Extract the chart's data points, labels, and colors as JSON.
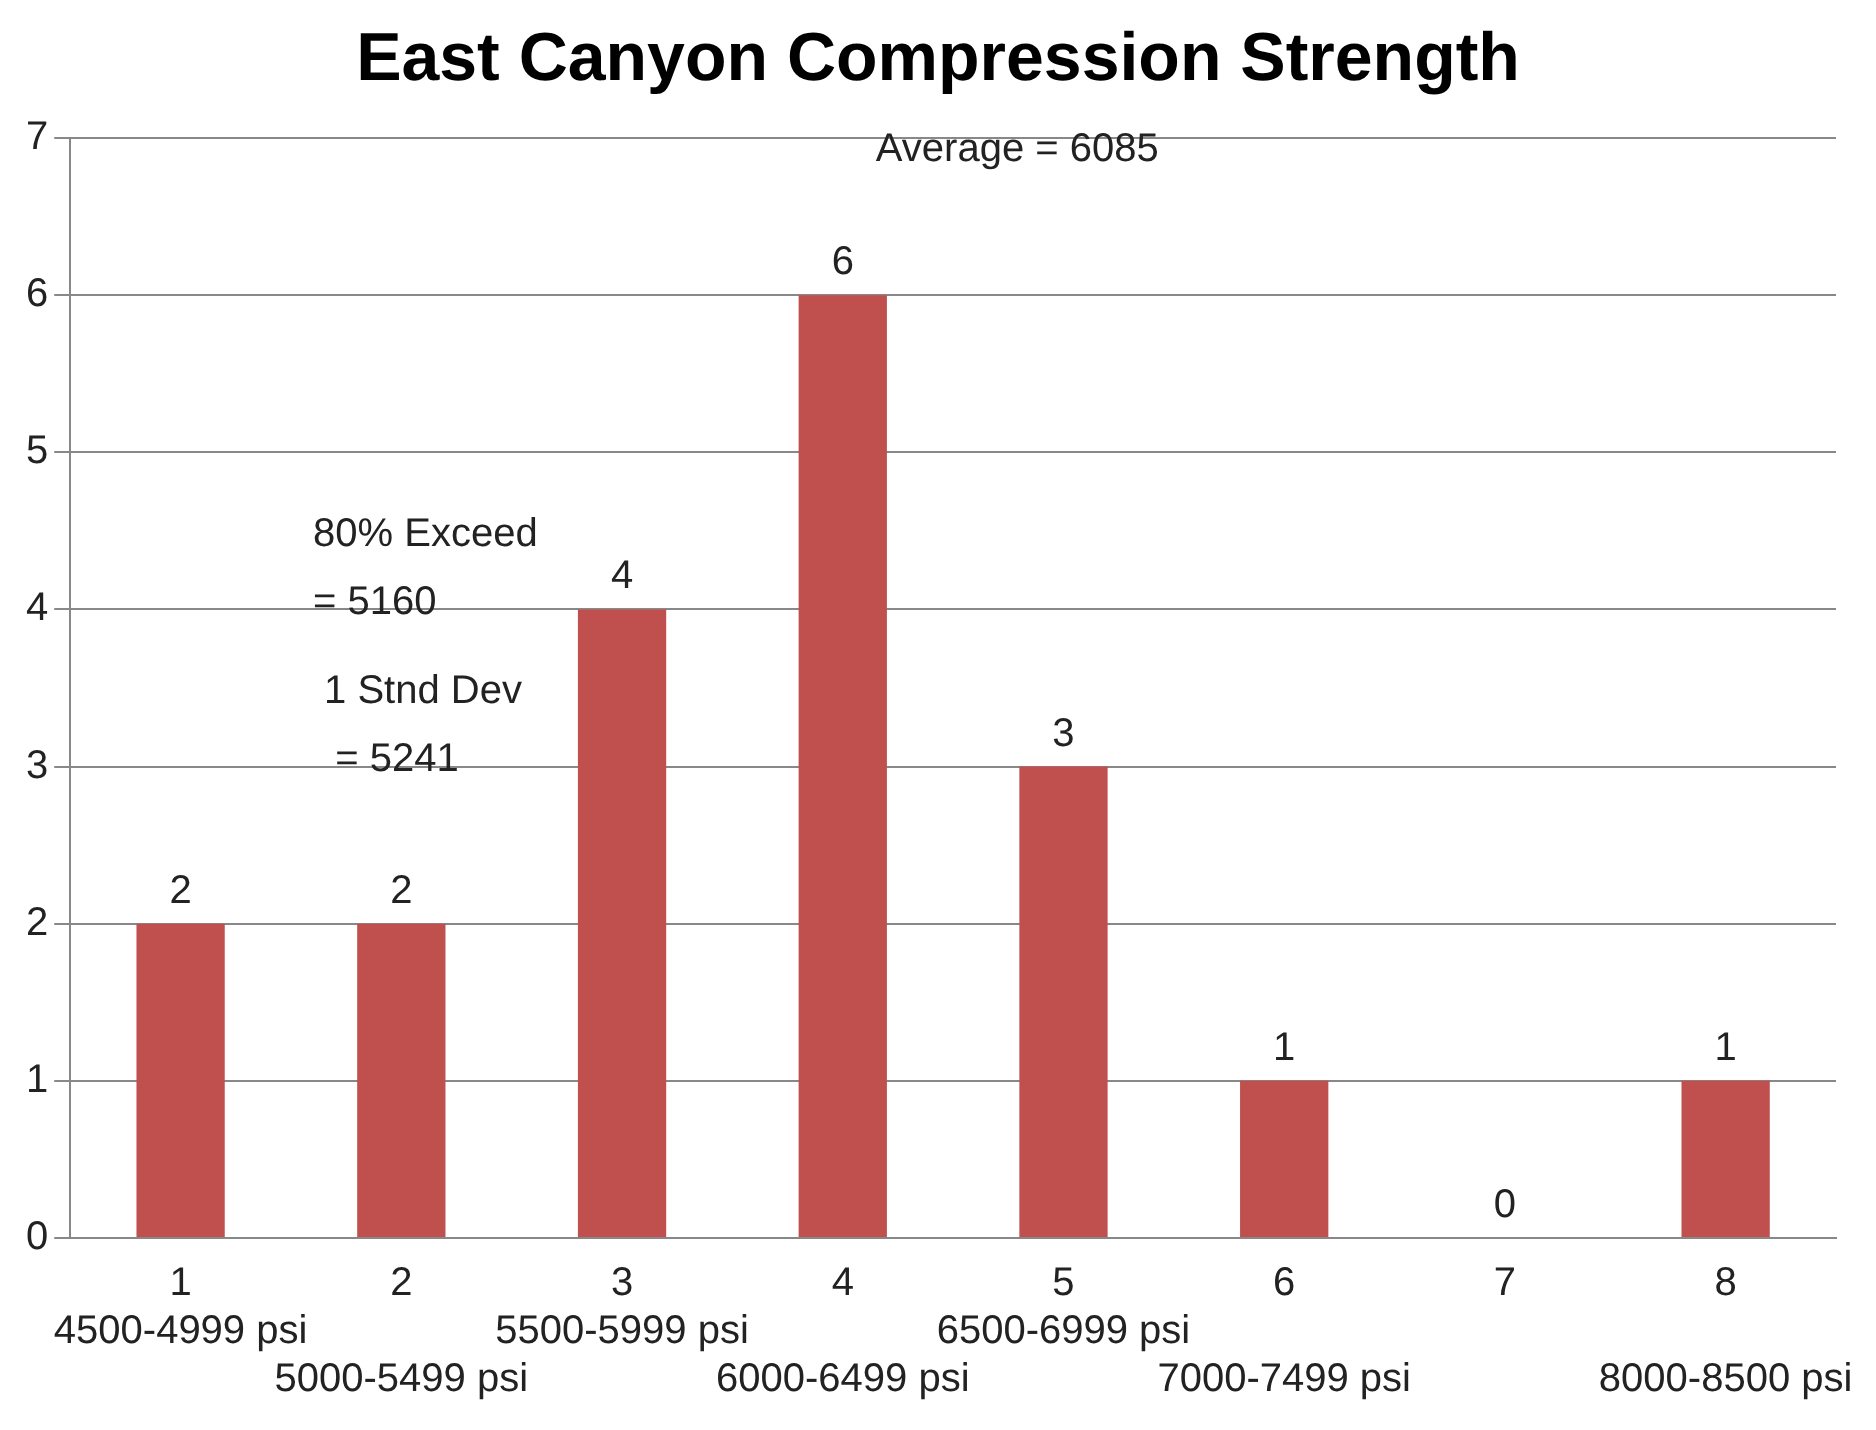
{
  "chart_data": {
    "type": "bar",
    "title": "East Canyon Compression Strength",
    "categories": [
      "1\n4500-4999 psi",
      "2\n5000-5499 psi",
      "3\n5500-5999 psi",
      "4\n6000-6499 psi",
      "5\n6500-6999 psi",
      "6\n7000-7499 psi",
      "7",
      "8\n8000-8500 psi"
    ],
    "values": [
      2,
      2,
      4,
      6,
      3,
      1,
      0,
      1
    ],
    "color": "#c0504d",
    "ylim": [
      0,
      7
    ],
    "yticks": [
      0,
      1,
      2,
      3,
      4,
      5,
      6,
      7
    ],
    "grid": "y",
    "legend": false,
    "data_labels": true,
    "annotations": [
      "Average = 6085",
      "80% Exceed\n= 5160",
      "1 Stnd Dev\n = 5241"
    ]
  }
}
